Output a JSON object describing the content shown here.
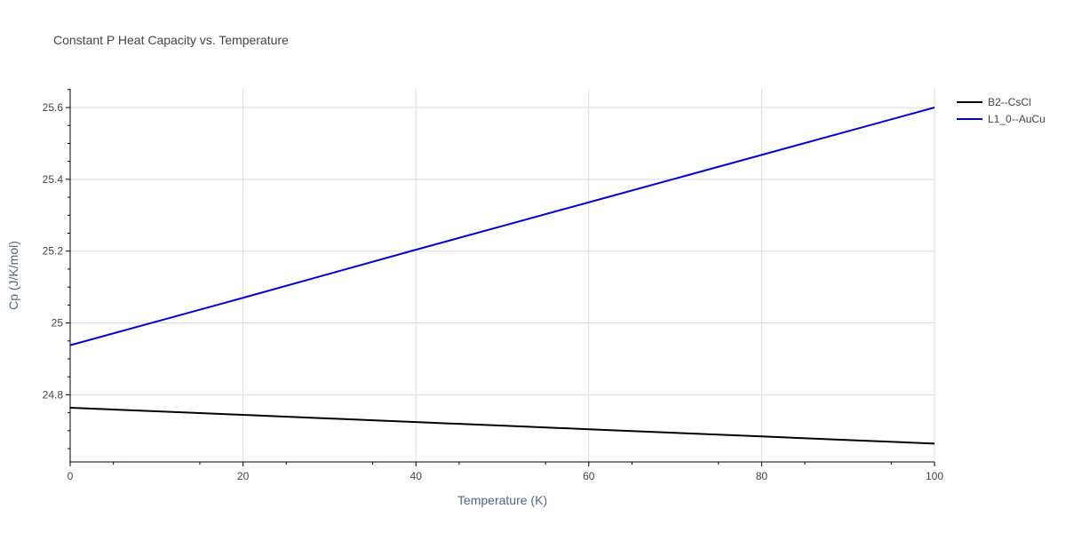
{
  "chart_data": {
    "type": "line",
    "title": "Constant P Heat Capacity vs. Temperature",
    "xlabel": "Temperature (K)",
    "ylabel": "Cp (J/K/mol)",
    "xlim": [
      0,
      100
    ],
    "ylim": [
      24.613,
      25.652
    ],
    "x_ticks": [
      0,
      20,
      40,
      60,
      80,
      100
    ],
    "x_tick_labels": [
      "0",
      "20",
      "40",
      "60",
      "80",
      "100"
    ],
    "y_ticks": [
      24.8,
      25.0,
      25.2,
      25.4,
      25.6
    ],
    "y_tick_labels": [
      "24.8",
      "25",
      "25.2",
      "25.4",
      "25.6"
    ],
    "grid": true,
    "legend_position": "top-right",
    "series": [
      {
        "name": "B2--CsCl",
        "color": "#000000",
        "x": [
          0,
          10,
          20,
          30,
          40,
          50,
          60,
          70,
          80,
          90,
          100
        ],
        "y": [
          24.764,
          24.754,
          24.744,
          24.734,
          24.724,
          24.714,
          24.704,
          24.694,
          24.684,
          24.674,
          24.664
        ]
      },
      {
        "name": "L1_0--AuCu",
        "color": "#0000dd",
        "x": [
          0,
          10,
          20,
          30,
          40,
          50,
          60,
          70,
          80,
          90,
          100
        ],
        "y": [
          24.938,
          25.004,
          25.07,
          25.137,
          25.204,
          25.27,
          25.336,
          25.402,
          25.468,
          25.534,
          25.6
        ]
      }
    ]
  }
}
